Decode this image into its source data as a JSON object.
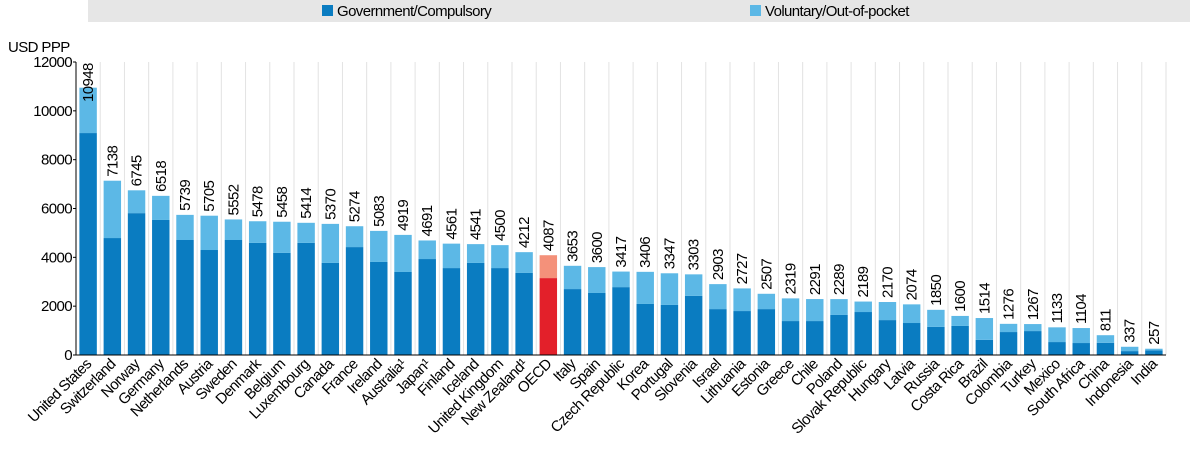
{
  "chart_data": {
    "type": "stacked_bar",
    "y_label": "USD PPP",
    "categories": [
      "United States",
      "Switzerland",
      "Norway",
      "Germany",
      "Netherlands",
      "Austria",
      "Sweden",
      "Denmark",
      "Belgium",
      "Luxembourg",
      "Canada",
      "France",
      "Ireland",
      "Australia¹",
      "Japan¹",
      "Finland",
      "Iceland",
      "United Kingdom",
      "New Zealand¹",
      "OECD",
      "Italy",
      "Spain",
      "Czech Republic",
      "Korea",
      "Portugal",
      "Slovenia",
      "Israel",
      "Lithuania",
      "Estonia",
      "Greece",
      "Chile",
      "Poland",
      "Slovak Republic",
      "Hungary",
      "Latvia",
      "Russia",
      "Costa Rica",
      "Brazil",
      "Colombia",
      "Turkey",
      "Mexico",
      "South Africa",
      "China",
      "Indonesia",
      "India"
    ],
    "series": [
      {
        "name": "Government/Compulsory",
        "color": "#0a7cc1",
        "highlight_color": "#e3202a",
        "values": [
          9090,
          4790,
          5810,
          5530,
          4710,
          4300,
          4710,
          4590,
          4180,
          4590,
          3770,
          4420,
          3810,
          3400,
          3930,
          3560,
          3770,
          3560,
          3360,
          3150,
          2700,
          2540,
          2780,
          2090,
          2050,
          2420,
          1880,
          1800,
          1880,
          1390,
          1390,
          1640,
          1760,
          1430,
          1310,
          1150,
          1190,
          620,
          940,
          980,
          530,
          490,
          500,
          160,
          190
        ]
      },
      {
        "name": "Voluntary/Out-of-pocket",
        "color": "#5cb8e6",
        "highlight_color": "#f4917a",
        "values": [
          1858,
          2348,
          935,
          988,
          1029,
          1405,
          842,
          888,
          1278,
          824,
          1600,
          854,
          1273,
          1519,
          761,
          1001,
          771,
          940,
          852,
          937,
          953,
          1060,
          637,
          1316,
          1297,
          883,
          1023,
          927,
          627,
          929,
          901,
          649,
          429,
          740,
          764,
          700,
          410,
          894,
          336,
          287,
          603,
          614,
          311,
          177,
          67
        ]
      }
    ],
    "totals": [
      10948,
      7138,
      6745,
      6518,
      5739,
      5705,
      5552,
      5478,
      5458,
      5414,
      5370,
      5274,
      5083,
      4919,
      4691,
      4561,
      4541,
      4500,
      4212,
      4087,
      3653,
      3600,
      3417,
      3406,
      3347,
      3303,
      2903,
      2727,
      2507,
      2319,
      2291,
      2289,
      2189,
      2170,
      2074,
      1850,
      1600,
      1514,
      1276,
      1267,
      1133,
      1104,
      811,
      337,
      257
    ],
    "highlight_category": "OECD",
    "ylim": [
      0,
      12000
    ],
    "yticks": [
      0,
      2000,
      4000,
      6000,
      8000,
      10000,
      12000
    ],
    "grid": false
  }
}
